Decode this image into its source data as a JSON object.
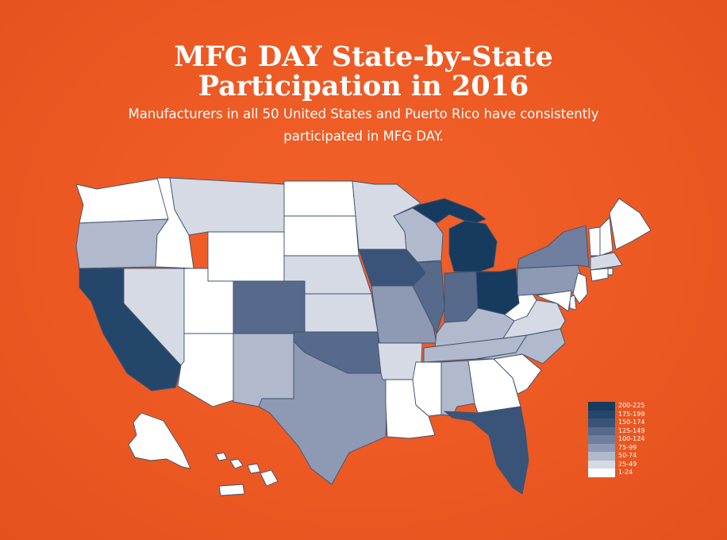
{
  "title": {
    "line1": "MFG DAY State-by-State",
    "line2": "Participation in 2016"
  },
  "subtitle": {
    "line1": "Manufacturers in all 50 United States and Puerto Rico have consistently",
    "line2": "participated in MFG DAY."
  },
  "colors": {
    "background": "#ee5a24",
    "state_border": "#3d5270",
    "text": "#ffffff"
  },
  "legend": [
    {
      "label": "200-225",
      "color": "#173b5e"
    },
    {
      "label": "175-199",
      "color": "#25466b"
    },
    {
      "label": "150-174",
      "color": "#3a5479"
    },
    {
      "label": "125-149",
      "color": "#586a8c"
    },
    {
      "label": "100-124",
      "color": "#707e9f"
    },
    {
      "label": "75-99",
      "color": "#8e99b3"
    },
    {
      "label": "50-74",
      "color": "#b1b9cc"
    },
    {
      "label": "25-49",
      "color": "#d6dae4"
    },
    {
      "label": "1-24",
      "color": "#ffffff"
    }
  ],
  "state_participation_bin": {
    "WA": "1-24",
    "OR": "50-74",
    "CA": "175-199",
    "NV": "25-49",
    "ID": "1-24",
    "MT": "25-49",
    "WY": "1-24",
    "UT": "1-24",
    "AZ": "1-24",
    "CO": "125-149",
    "NM": "50-74",
    "ND": "1-24",
    "SD": "1-24",
    "NE": "25-49",
    "KS": "25-49",
    "OK": "125-149",
    "TX": "75-99",
    "MN": "25-49",
    "IA": "150-174",
    "MO": "75-99",
    "AR": "25-49",
    "LA": "1-24",
    "WI": "50-74",
    "IL": "125-149",
    "MI": "200-225",
    "IN": "125-149",
    "OH": "200-225",
    "KY": "50-74",
    "TN": "50-74",
    "MS": "1-24",
    "AL": "50-74",
    "GA": "1-24",
    "FL": "150-174",
    "SC": "1-24",
    "NC": "50-74",
    "VA": "25-49",
    "WV": "1-24",
    "PA": "75-99",
    "NY": "100-124",
    "VT": "1-24",
    "NH": "1-24",
    "ME": "1-24",
    "MA": "25-49",
    "RI": "1-24",
    "CT": "1-24",
    "NJ": "1-24",
    "DE": "1-24",
    "MD": "1-24",
    "AK": "1-24",
    "HI": "1-24",
    "PR": "1-24"
  }
}
